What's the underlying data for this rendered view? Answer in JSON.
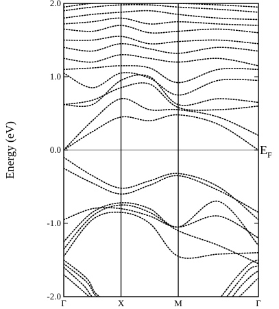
{
  "chart_data": {
    "type": "line",
    "ylabel": "Energy (eV)",
    "ylim": [
      -2.0,
      2.0
    ],
    "yticks": [
      "-2.0",
      "-1.0",
      "0.0",
      "1.0",
      "2.0"
    ],
    "y_tick_values": [
      -2.0,
      -1.0,
      0.0,
      1.0,
      2.0
    ],
    "kpoints": [
      "Γ",
      "X",
      "M",
      "Γ"
    ],
    "kpoint_positions": [
      0,
      1,
      2,
      3.4
    ],
    "fermi_label": "E",
    "fermi_subscript": "F",
    "fermi_energy": 0.0,
    "grid": false,
    "series": [
      {
        "x": [
          0,
          0.5,
          1,
          1.5,
          2,
          2.7,
          3.4
        ],
        "y": [
          -1.45,
          -0.95,
          -0.85,
          -1.0,
          -1.45,
          -1.42,
          -1.4
        ]
      },
      {
        "x": [
          0,
          0.5,
          1,
          1.5,
          2,
          2.7,
          3.4
        ],
        "y": [
          -1.35,
          -0.9,
          -0.75,
          -0.85,
          -1.1,
          -1.3,
          -1.55
        ]
      },
      {
        "x": [
          0,
          0.5,
          1,
          1.5,
          2,
          2.7,
          3.4
        ],
        "y": [
          -1.25,
          -0.85,
          -0.72,
          -0.8,
          -1.05,
          -0.7,
          -1.3
        ]
      },
      {
        "x": [
          0,
          0.5,
          1,
          1.5,
          2,
          2.7,
          3.4
        ],
        "y": [
          -0.95,
          -0.8,
          -0.8,
          -0.9,
          -1.05,
          -0.9,
          -1.2
        ]
      },
      {
        "x": [
          0,
          0.5,
          1,
          1.5,
          2,
          2.7,
          3.4
        ],
        "y": [
          -0.25,
          -0.45,
          -0.6,
          -0.48,
          -0.35,
          -0.55,
          -0.85
        ]
      },
      {
        "x": [
          0,
          0.5,
          1,
          1.5,
          2,
          2.7,
          3.4
        ],
        "y": [
          -0.1,
          -0.35,
          -0.52,
          -0.42,
          -0.32,
          -0.5,
          -0.95
        ]
      },
      {
        "x": [
          0,
          0.5,
          1,
          1.5,
          2,
          2.7,
          3.4
        ],
        "y": [
          0.0,
          0.25,
          0.45,
          0.4,
          0.48,
          0.35,
          0.0
        ]
      },
      {
        "x": [
          0,
          0.5,
          1,
          1.5,
          2,
          2.7,
          3.4
        ],
        "y": [
          0.0,
          0.4,
          0.7,
          0.55,
          0.55,
          0.45,
          0.2
        ]
      },
      {
        "x": [
          0,
          0.5,
          1,
          1.5,
          2,
          2.7,
          3.4
        ],
        "y": [
          0.62,
          0.68,
          0.85,
          0.9,
          0.58,
          0.55,
          0.6
        ]
      },
      {
        "x": [
          0,
          0.5,
          1,
          1.5,
          2,
          2.7,
          3.4
        ],
        "y": [
          0.62,
          0.62,
          0.95,
          1.0,
          0.62,
          0.7,
          0.65
        ]
      },
      {
        "x": [
          0,
          0.5,
          1,
          1.5,
          2,
          2.7,
          3.4
        ],
        "y": [
          1.05,
          0.85,
          1.05,
          0.98,
          0.75,
          0.95,
          0.95
        ]
      },
      {
        "x": [
          0,
          0.5,
          1,
          1.5,
          2,
          2.7,
          3.4
        ],
        "y": [
          1.1,
          1.12,
          1.15,
          1.12,
          0.92,
          1.1,
          1.1
        ]
      },
      {
        "x": [
          0,
          0.5,
          1,
          1.5,
          2,
          2.7,
          3.4
        ],
        "y": [
          1.25,
          1.2,
          1.3,
          1.25,
          1.2,
          1.25,
          1.15
        ]
      },
      {
        "x": [
          0,
          0.5,
          1,
          1.5,
          2,
          2.7,
          3.4
        ],
        "y": [
          1.4,
          1.35,
          1.45,
          1.38,
          1.32,
          1.4,
          1.35
        ]
      },
      {
        "x": [
          0,
          0.5,
          1,
          1.5,
          2,
          2.7,
          3.4
        ],
        "y": [
          1.5,
          1.5,
          1.55,
          1.45,
          1.48,
          1.5,
          1.45
        ]
      },
      {
        "x": [
          0,
          0.5,
          1,
          1.5,
          2,
          2.7,
          3.4
        ],
        "y": [
          1.65,
          1.62,
          1.7,
          1.6,
          1.62,
          1.65,
          1.6
        ]
      },
      {
        "x": [
          0,
          0.5,
          1,
          1.5,
          2,
          2.7,
          3.4
        ],
        "y": [
          1.72,
          1.75,
          1.8,
          1.72,
          1.75,
          1.72,
          1.7
        ]
      },
      {
        "x": [
          0,
          0.5,
          1,
          1.5,
          2,
          2.7,
          3.4
        ],
        "y": [
          1.8,
          1.85,
          1.88,
          1.9,
          1.85,
          1.8,
          1.78
        ]
      },
      {
        "x": [
          0,
          0.5,
          1,
          1.5,
          2,
          2.7,
          3.4
        ],
        "y": [
          1.9,
          1.95,
          1.98,
          1.98,
          1.95,
          1.92,
          1.88
        ]
      },
      {
        "x": [
          0,
          0.5,
          1,
          1.5,
          2,
          2.7,
          3.4
        ],
        "y": [
          1.95,
          2.0,
          2.0,
          2.0,
          2.0,
          1.98,
          1.95
        ]
      },
      {
        "x": [
          0,
          0.4,
          0.55,
          0.75
        ],
        "y": [
          -1.5,
          -1.75,
          -1.95,
          -2.05
        ]
      },
      {
        "x": [
          0,
          0.4,
          0.55,
          0.75
        ],
        "y": [
          -1.55,
          -1.8,
          -1.98,
          -2.05
        ]
      },
      {
        "x": [
          0,
          0.35,
          0.5,
          0.7
        ],
        "y": [
          -1.6,
          -1.85,
          -2.0,
          -2.05
        ]
      },
      {
        "x": [
          0,
          0.3,
          0.45,
          0.6
        ],
        "y": [
          -1.7,
          -1.9,
          -2.0,
          -2.05
        ]
      },
      {
        "x": [
          2.7,
          3.0,
          3.25,
          3.4
        ],
        "y": [
          -2.05,
          -1.75,
          -1.55,
          -1.5
        ]
      },
      {
        "x": [
          2.8,
          3.05,
          3.25,
          3.4
        ],
        "y": [
          -2.05,
          -1.8,
          -1.62,
          -1.58
        ]
      },
      {
        "x": [
          2.9,
          3.1,
          3.3,
          3.4
        ],
        "y": [
          -2.05,
          -1.85,
          -1.7,
          -1.65
        ]
      },
      {
        "x": [
          3.0,
          3.2,
          3.35,
          3.4
        ],
        "y": [
          -2.05,
          -1.9,
          -1.78,
          -1.75
        ]
      }
    ]
  }
}
